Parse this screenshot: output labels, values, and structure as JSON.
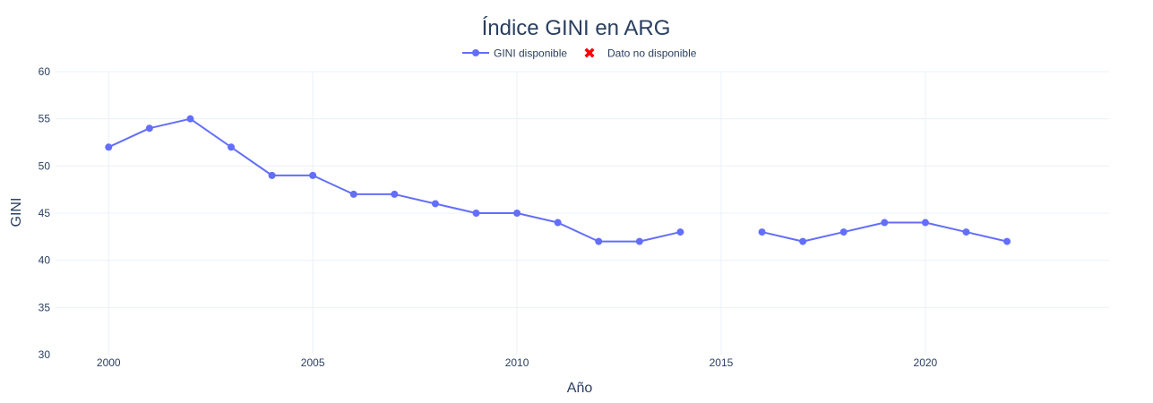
{
  "chart_data": {
    "type": "line",
    "title": "Índice GINI en ARG",
    "xlabel": "Año",
    "ylabel": "GINI",
    "xlim": [
      1998.7,
      2024.5
    ],
    "ylim": [
      30,
      60
    ],
    "x_ticks": [
      2000,
      2005,
      2010,
      2015,
      2020
    ],
    "y_ticks": [
      30,
      35,
      40,
      45,
      50,
      55,
      60
    ],
    "grid": true,
    "legend_position": "top-center",
    "series": [
      {
        "name": "GINI disponible",
        "color": "#636efa",
        "marker": "circle",
        "x": [
          2000,
          2001,
          2002,
          2003,
          2004,
          2005,
          2006,
          2007,
          2008,
          2009,
          2010,
          2011,
          2012,
          2013,
          2014,
          2015,
          2016,
          2017,
          2018,
          2019,
          2020,
          2021,
          2022
        ],
        "y": [
          52,
          54,
          55,
          52,
          49,
          49,
          47,
          47,
          46,
          45,
          45,
          44,
          42,
          42,
          43,
          null,
          43,
          42,
          43,
          44,
          44,
          43,
          42
        ]
      },
      {
        "name": "Dato no disponible",
        "color": "#ff0000",
        "marker": "x",
        "x": [],
        "y": []
      }
    ]
  }
}
